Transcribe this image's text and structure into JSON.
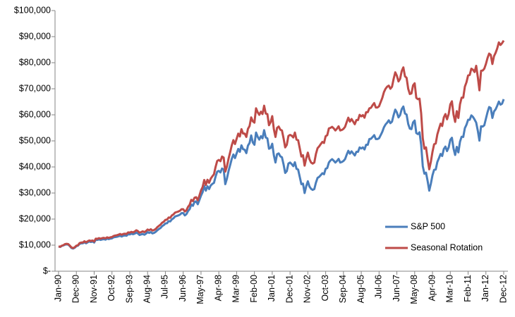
{
  "chart_data": {
    "type": "line",
    "categories": [
      "Jan-90",
      null,
      null,
      null,
      null,
      null,
      null,
      null,
      null,
      null,
      null,
      "Dec-90",
      null,
      null,
      null,
      null,
      null,
      null,
      null,
      null,
      null,
      null,
      "Nov-91",
      null,
      null,
      null,
      null,
      null,
      null,
      null,
      null,
      null,
      null,
      "Oct-92",
      null,
      null,
      null,
      null,
      null,
      null,
      null,
      null,
      null,
      null,
      "Sep-93",
      null,
      null,
      null,
      null,
      null,
      null,
      null,
      null,
      null,
      null,
      "Aug-94",
      null,
      null,
      null,
      null,
      null,
      null,
      null,
      null,
      null,
      null,
      "Jul-95",
      null,
      null,
      null,
      null,
      null,
      null,
      null,
      null,
      null,
      null,
      "Jun-96",
      null,
      null,
      null,
      null,
      null,
      null,
      null,
      null,
      null,
      null,
      "May-97",
      null,
      null,
      null,
      null,
      null,
      null,
      null,
      null,
      null,
      null,
      "Apr-98",
      null,
      null,
      null,
      null,
      null,
      null,
      null,
      null,
      null,
      null,
      "Mar-99",
      null,
      null,
      null,
      null,
      null,
      null,
      null,
      null,
      null,
      null,
      "Feb-00",
      null,
      null,
      null,
      null,
      null,
      null,
      null,
      null,
      null,
      null,
      "Jan-01",
      null,
      null,
      null,
      null,
      null,
      null,
      null,
      null,
      null,
      null,
      "Dec-01",
      null,
      null,
      null,
      null,
      null,
      null,
      null,
      null,
      null,
      null,
      "Nov-02",
      null,
      null,
      null,
      null,
      null,
      null,
      null,
      null,
      null,
      null,
      "Oct-03",
      null,
      null,
      null,
      null,
      null,
      null,
      null,
      null,
      null,
      null,
      "Sep-04",
      null,
      null,
      null,
      null,
      null,
      null,
      null,
      null,
      null,
      null,
      "Aug-05",
      null,
      null,
      null,
      null,
      null,
      null,
      null,
      null,
      null,
      null,
      "Jul-06",
      null,
      null,
      null,
      null,
      null,
      null,
      null,
      null,
      null,
      null,
      "Jun-07",
      null,
      null,
      null,
      null,
      null,
      null,
      null,
      null,
      null,
      null,
      "May-08",
      null,
      null,
      null,
      null,
      null,
      null,
      null,
      null,
      null,
      null,
      "Apr-09",
      null,
      null,
      null,
      null,
      null,
      null,
      null,
      null,
      null,
      null,
      "Mar-10",
      null,
      null,
      null,
      null,
      null,
      null,
      null,
      null,
      null,
      null,
      "Feb-11",
      null,
      null,
      null,
      null,
      null,
      null,
      null,
      null,
      null,
      null,
      "Jan-12",
      null,
      null,
      null,
      null,
      null,
      null,
      null,
      null,
      null,
      null,
      "Dec-12"
    ],
    "series": [
      {
        "name": "S&P 500",
        "color": "#4a7ebb",
        "values": [
          9500,
          9300,
          9700,
          9900,
          10200,
          10300,
          10200,
          9600,
          8900,
          8700,
          9000,
          9600,
          9800,
          10500,
          10700,
          10700,
          11100,
          10700,
          11100,
          11400,
          11200,
          11400,
          11000,
          12100,
          12000,
          12200,
          12000,
          12200,
          12300,
          12100,
          12500,
          12300,
          12500,
          12600,
          13000,
          13100,
          13200,
          13400,
          13600,
          13300,
          13600,
          13700,
          13600,
          14200,
          14100,
          14400,
          14200,
          14400,
          14800,
          14500,
          13900,
          14100,
          14300,
          14000,
          14400,
          15000,
          14700,
          15000,
          14500,
          14700,
          15100,
          15700,
          16200,
          16600,
          17300,
          17700,
          18300,
          18400,
          19200,
          19100,
          19900,
          20300,
          21000,
          21200,
          21400,
          21700,
          22300,
          22300,
          21400,
          21900,
          23100,
          23800,
          25600,
          25100,
          26600,
          26800,
          25700,
          27300,
          29000,
          30300,
          32700,
          30900,
          32600,
          31500,
          32900,
          33500,
          33900,
          36300,
          38200,
          38500,
          37900,
          39400,
          39000,
          33400,
          35500,
          38400,
          40700,
          43100,
          44800,
          43400,
          45200,
          46900,
          45800,
          48300,
          46800,
          46600,
          45300,
          48200,
          49200,
          52100,
          49400,
          48500,
          53200,
          51600,
          50500,
          51800,
          51000,
          54100,
          51300,
          51000,
          47000,
          47300,
          48900,
          44500,
          41700,
          44900,
          45200,
          44100,
          43700,
          41000,
          37700,
          38400,
          41300,
          41700,
          41100,
          40300,
          41800,
          39300,
          39000,
          36200,
          33400,
          33600,
          30000,
          32600,
          34500,
          32500,
          31600,
          31200,
          31500,
          34000,
          35800,
          36200,
          36900,
          37600,
          37200,
          39300,
          39600,
          41700,
          42500,
          43000,
          42400,
          41700,
          42300,
          43100,
          41700,
          41900,
          42300,
          43000,
          44700,
          46200,
          45100,
          46000,
          45200,
          44400,
          45800,
          45800,
          47500,
          47100,
          47500,
          46700,
          48500,
          48500,
          50700,
          50800,
          51500,
          52200,
          50700,
          50700,
          51000,
          52200,
          53500,
          55200,
          56300,
          57000,
          57900,
          56800,
          57400,
          59900,
          62000,
          60900,
          59000,
          59900,
          62200,
          63200,
          60500,
          60100,
          56500,
          54700,
          54500,
          57100,
          57800,
          53000,
          52600,
          53300,
          48500,
          40300,
          37400,
          37800,
          34600,
          30900,
          33600,
          36800,
          38900,
          39000,
          41900,
          43400,
          45000,
          44200,
          46900,
          47800,
          46100,
          47500,
          50400,
          51200,
          47100,
          44600,
          47700,
          45600,
          49700,
          51600,
          51500,
          54900,
          56200,
          58100,
          58100,
          59800,
          59200,
          58200,
          57000,
          53900,
          50100,
          55600,
          55500,
          56000,
          58500,
          61000,
          63000,
          62600,
          58800,
          61300,
          62100,
          63500,
          65100,
          63900,
          64300,
          66000
        ]
      },
      {
        "name": "Seasonal Rotation",
        "color": "#be4b48",
        "values": [
          9500,
          9400,
          9800,
          10000,
          10400,
          10500,
          10400,
          9800,
          9100,
          8900,
          9200,
          9800,
          10000,
          10800,
          11000,
          11000,
          11500,
          11100,
          11500,
          11800,
          11600,
          11800,
          11400,
          12500,
          12400,
          12700,
          12500,
          12700,
          12800,
          12600,
          13000,
          12800,
          13000,
          13100,
          13500,
          13700,
          13800,
          14000,
          14300,
          14000,
          14300,
          14400,
          14300,
          14900,
          14800,
          15100,
          14900,
          15200,
          15700,
          15400,
          14800,
          15000,
          15300,
          15000,
          15400,
          16000,
          15700,
          16100,
          15600,
          15800,
          16200,
          16900,
          17400,
          17900,
          18600,
          19000,
          19700,
          19800,
          20600,
          20500,
          21400,
          21800,
          22500,
          22700,
          22900,
          23200,
          23800,
          23800,
          22900,
          23400,
          24700,
          25500,
          27400,
          26900,
          28200,
          28400,
          27200,
          29000,
          31000,
          32300,
          35000,
          33100,
          35100,
          33900,
          35500,
          36400,
          37200,
          40000,
          42300,
          42700,
          42200,
          44000,
          43600,
          38200,
          40200,
          43100,
          45600,
          48300,
          50300,
          48800,
          50800,
          52800,
          51700,
          54500,
          52800,
          52800,
          51500,
          54600,
          55700,
          59000,
          57500,
          57000,
          62500,
          61000,
          60000,
          61200,
          60300,
          63500,
          60500,
          60300,
          56000,
          57200,
          59500,
          54500,
          51500,
          55000,
          55500,
          54300,
          54000,
          51000,
          47500,
          48500,
          51900,
          52300,
          52000,
          51300,
          53200,
          50500,
          50300,
          47200,
          44000,
          44500,
          40500,
          43300,
          45500,
          43000,
          41700,
          41300,
          41700,
          45000,
          47200,
          47900,
          48800,
          49600,
          49200,
          51800,
          52200,
          54800,
          55000,
          55400,
          54800,
          54000,
          54700,
          55600,
          54000,
          54200,
          54600,
          55400,
          57200,
          58900,
          57400,
          58400,
          57400,
          56400,
          58000,
          58000,
          60000,
          59400,
          59900,
          58900,
          61000,
          61000,
          62500,
          62700,
          63700,
          64500,
          62800,
          62800,
          63300,
          64900,
          66500,
          68700,
          70000,
          70800,
          71200,
          70000,
          70800,
          73800,
          76300,
          75000,
          72800,
          73800,
          76800,
          78200,
          74800,
          74200,
          70000,
          68000,
          68200,
          71300,
          72100,
          66500,
          66000,
          66200,
          60600,
          51000,
          47000,
          47500,
          43000,
          39100,
          42000,
          45800,
          48700,
          49000,
          52500,
          54600,
          56600,
          55700,
          59000,
          60300,
          58300,
          60300,
          64000,
          65200,
          60100,
          57300,
          61400,
          58800,
          64100,
          66600,
          66600,
          70800,
          72500,
          75100,
          75300,
          77700,
          77300,
          76400,
          78800,
          74500,
          69400,
          76900,
          77000,
          77700,
          79500,
          81800,
          83500,
          83000,
          79500,
          82500,
          83800,
          85500,
          87800,
          86800,
          87500,
          88500
        ]
      }
    ],
    "ylim": [
      0,
      100000
    ],
    "yticks": [
      {
        "value": 0,
        "label": "$-"
      },
      {
        "value": 10000,
        "label": "$10,000"
      },
      {
        "value": 20000,
        "label": "$20,000"
      },
      {
        "value": 30000,
        "label": "$30,000"
      },
      {
        "value": 40000,
        "label": "$40,000"
      },
      {
        "value": 50000,
        "label": "$50,000"
      },
      {
        "value": 60000,
        "label": "$60,000"
      },
      {
        "value": 70000,
        "label": "$70,000"
      },
      {
        "value": 80000,
        "label": "$80,000"
      },
      {
        "value": 90000,
        "label": "$90,000"
      },
      {
        "value": 100000,
        "label": "$100,000"
      }
    ],
    "grid": false,
    "legend": "lower right"
  }
}
